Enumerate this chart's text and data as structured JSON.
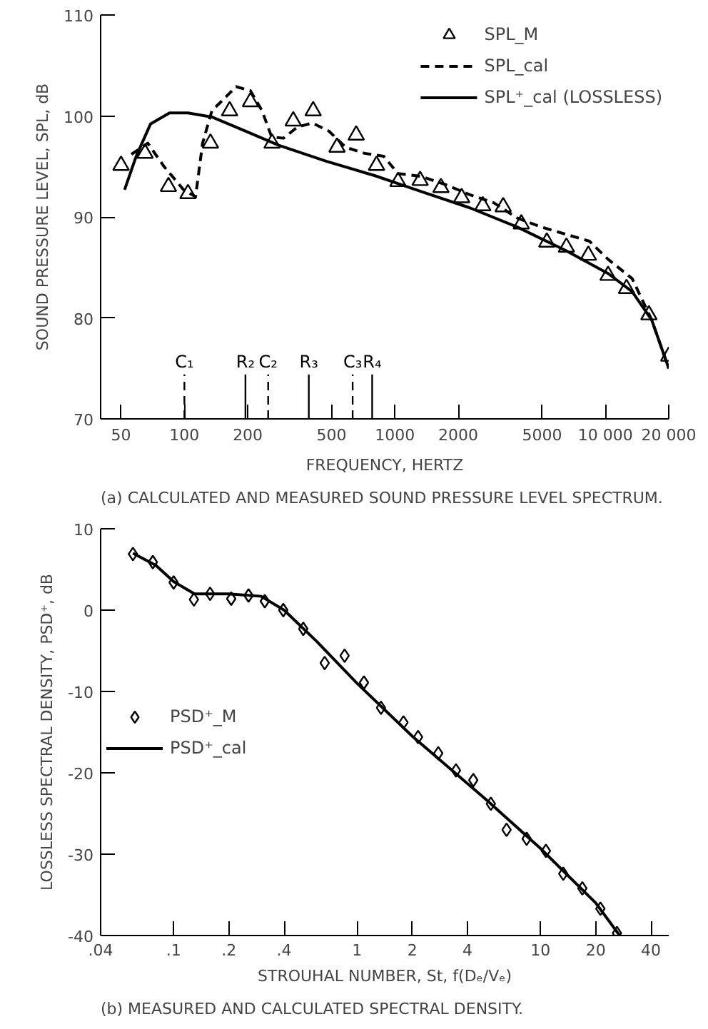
{
  "chart_data": [
    {
      "type": "line",
      "title": "(a) CALCULATED AND MEASURED SOUND PRESSURE LEVEL SPECTRUM.",
      "xlabel": "FREQUENCY, HERTZ",
      "ylabel": "SOUND PRESSURE LEVEL, SPL, dB",
      "log": "x",
      "xlim": [
        40,
        20000
      ],
      "xticks": [
        50,
        100,
        200,
        500,
        1000,
        2000,
        5000,
        {
          "value": 10000,
          "label": "10 000"
        },
        {
          "value": 20000,
          "label": "20 000"
        }
      ],
      "ylim": [
        70,
        110
      ],
      "yticks": [
        70,
        80,
        90,
        100,
        110
      ],
      "grid": false,
      "legend": "top right",
      "series": [
        {
          "name": "SPL_M",
          "type": "scatter",
          "marker": "triangle",
          "color": "#000000",
          "x": [
            50,
            65,
            84,
            104,
            133,
            164,
            206,
            261,
            329,
            409,
            531,
            655,
            818,
            1035,
            1318,
            1655,
            2076,
            2615,
            3270,
            3985,
            5270,
            6530,
            8300,
            10300,
            12600,
            16100,
            20000
          ],
          "values": [
            95.1,
            96.3,
            93.0,
            92.3,
            97.3,
            100.5,
            101.4,
            97.3,
            99.5,
            100.5,
            96.9,
            98.1,
            95.1,
            93.5,
            93.6,
            92.9,
            91.9,
            91.1,
            91.0,
            89.3,
            87.5,
            87.0,
            86.2,
            84.2,
            82.9,
            80.3,
            76.2
          ]
        },
        {
          "name": "SPL_cal",
          "line_style": "dashed",
          "color": "#000000",
          "x": [
            56,
            67,
            80,
            99,
            113,
            122,
            135,
            176,
            206,
            234,
            260,
            296,
            344,
            405,
            486,
            583,
            718,
            885,
            1035,
            1340,
            1740,
            2270,
            2950,
            3810,
            4960,
            6450,
            8400,
            10300,
            13400,
            16600,
            20000
          ],
          "values": [
            96.2,
            97.3,
            95.0,
            92.7,
            92.0,
            97.3,
            100.5,
            102.9,
            102.5,
            100.5,
            97.9,
            97.8,
            98.9,
            99.3,
            98.5,
            96.9,
            96.3,
            96.0,
            94.3,
            94.0,
            93.2,
            92.2,
            91.4,
            89.9,
            89.0,
            88.3,
            87.6,
            85.8,
            83.9,
            79.8,
            75.0
          ]
        },
        {
          "name": "SPL⁺_cal (LOSSLESS)",
          "line_style": "solid",
          "color": "#000000",
          "x": [
            52,
            59,
            69,
            85,
            104,
            135,
            185,
            281,
            474,
            800,
            1340,
            2270,
            3810,
            6450,
            10300,
            13400,
            16600,
            20000
          ],
          "values": [
            92.7,
            96.0,
            99.2,
            100.3,
            100.3,
            99.9,
            98.7,
            97.1,
            95.5,
            94.1,
            92.5,
            90.9,
            89.0,
            86.7,
            84.4,
            82.6,
            79.8,
            75.0
          ]
        }
      ],
      "ref_lines": [
        {
          "axis": "x",
          "value": 100,
          "label": "C₁",
          "line_style": "dashed"
        },
        {
          "axis": "x",
          "value": 195,
          "label": "R₂",
          "line_style": "solid"
        },
        {
          "axis": "x",
          "value": 250,
          "label": "C₂",
          "line_style": "dashed"
        },
        {
          "axis": "x",
          "value": 390,
          "label": "R₃",
          "line_style": "solid"
        },
        {
          "axis": "x",
          "value": 630,
          "label": "C₃",
          "line_style": "dashed"
        },
        {
          "axis": "x",
          "value": 780,
          "label": "R₄",
          "line_style": "solid"
        }
      ]
    },
    {
      "type": "line",
      "title": "(b) MEASURED AND CALCULATED SPECTRAL DENSITY.",
      "xlabel": "STROUHAL NUMBER, St, f(Dₑ/Vₑ)",
      "ylabel": "LOSSLESS SPECTRAL DENSITY, PSD⁺, dB",
      "log": "x",
      "xlim": [
        0.04,
        50
      ],
      "xticks": [
        {
          "value": 0.04,
          "label": ".04"
        },
        {
          "value": 0.1,
          "label": ".1"
        },
        {
          "value": 0.2,
          "label": ".2"
        },
        {
          "value": 0.4,
          "label": ".4"
        },
        1,
        2,
        4,
        10,
        20,
        40
      ],
      "ylim": [
        -40,
        10
      ],
      "yticks": [
        -40,
        -30,
        -20,
        -10,
        0,
        10
      ],
      "grid": false,
      "legend": "left",
      "series": [
        {
          "name": "PSD⁺_M",
          "type": "scatter",
          "marker": "diamond",
          "color": "#000000",
          "x": [
            0.06,
            0.077,
            0.1,
            0.129,
            0.158,
            0.206,
            0.256,
            0.314,
            0.396,
            0.509,
            0.666,
            0.855,
            1.09,
            1.35,
            1.79,
            2.15,
            2.77,
            3.46,
            4.3,
            5.36,
            6.53,
            8.4,
            10.7,
            13.3,
            16.9,
            21.2,
            26.1
          ],
          "values": [
            6.9,
            5.9,
            3.4,
            1.3,
            2.0,
            1.4,
            1.8,
            1.1,
            0.0,
            -2.3,
            -6.5,
            -5.6,
            -8.9,
            -12.0,
            -13.8,
            -15.6,
            -17.6,
            -19.7,
            -20.9,
            -23.8,
            -27.0,
            -28.1,
            -29.6,
            -32.4,
            -34.2,
            -36.7,
            -39.7
          ]
        },
        {
          "name": "PSD⁺_cal",
          "line_style": "solid",
          "color": "#000000",
          "x": [
            0.06,
            0.08,
            0.1,
            0.13,
            0.2,
            0.3,
            0.4,
            0.6,
            1,
            2,
            5,
            10,
            20,
            27
          ],
          "values": [
            7.0,
            5.5,
            3.5,
            2.0,
            2.0,
            1.7,
            0.0,
            -3.8,
            -9.0,
            -15.5,
            -23.2,
            -29.3,
            -36.0,
            -40.0
          ]
        }
      ]
    }
  ]
}
